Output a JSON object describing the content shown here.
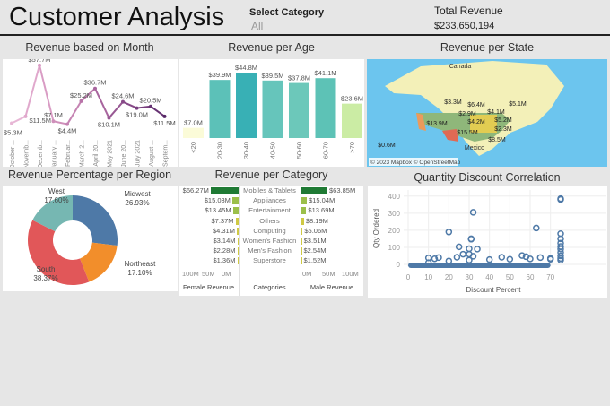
{
  "header": {
    "title": "Customer Analysis",
    "filter_label": "Select Category",
    "filter_value": "All",
    "total_label": "Total Revenue",
    "total_value": "$233,650,194"
  },
  "titles": {
    "month": "Revenue based on Month",
    "age": "Revenue per Age",
    "state": "Revenue per State",
    "region": "Revenue Percentage per Region",
    "category": "Revenue per Category",
    "scatter": "Quantity Discount Correlation"
  },
  "chart_data": [
    {
      "type": "line",
      "title": "Revenue based on Month",
      "categories": [
        "October ...",
        "Novemb...",
        "Decemb...",
        "January ...",
        "Februar...",
        "March 2...",
        "April 20...",
        "May 2021",
        "June 20...",
        "July 2021",
        "August ...",
        "Septem..."
      ],
      "values": [
        5.3,
        11.5,
        57.7,
        7.1,
        4.4,
        25.2,
        36.7,
        10.1,
        24.6,
        19.0,
        20.5,
        11.5
      ],
      "labels": [
        "$5.3M",
        "$11.5M",
        "$57.7M",
        "$7.1M",
        "$4.4M",
        "$25.2M",
        "$36.7M",
        "$10.1M",
        "$24.6M",
        "$19.0M",
        "$20.5M",
        "$11.5M"
      ],
      "colors": [
        "#e7b6d5",
        "#e0a8cc",
        "#d99cc4",
        "#cf8fba",
        "#c583b2",
        "#b873a8",
        "#a8659e",
        "#985893",
        "#874a88",
        "#773e7d",
        "#663272",
        "#552766"
      ]
    },
    {
      "type": "bar",
      "title": "Revenue per Age",
      "categories": [
        "<20",
        "20-30",
        "30-40",
        "40-50",
        "50-60",
        "60-70",
        ">70"
      ],
      "values": [
        7.0,
        39.9,
        44.8,
        39.5,
        37.8,
        41.1,
        23.6
      ],
      "labels": [
        "$7.0M",
        "$39.9M",
        "$44.8M",
        "$39.5M",
        "$37.8M",
        "$41.1M",
        "$23.6M"
      ],
      "colors": [
        "#fbfbd8",
        "#5cc1b8",
        "#38b0b5",
        "#66c5bb",
        "#6cc8ba",
        "#5dc2b6",
        "#cbeca4"
      ]
    },
    {
      "type": "pie",
      "title": "Revenue Percentage per Region",
      "slices": [
        {
          "name": "Midwest",
          "value": 26.93,
          "label": "26.93%",
          "color": "#4e79a7"
        },
        {
          "name": "Northeast",
          "value": 17.1,
          "label": "17.10%",
          "color": "#f28e2b"
        },
        {
          "name": "South",
          "value": 38.37,
          "label": "38.37%",
          "color": "#e15759"
        },
        {
          "name": "West",
          "value": 17.6,
          "label": "17.60%",
          "color": "#76b7b2"
        }
      ]
    },
    {
      "type": "bar",
      "title": "Revenue per Category",
      "categories": [
        "Mobiles & Tablets",
        "Appliances",
        "Entertainment",
        "Others",
        "Computing",
        "Women's Fashion",
        "Men's Fashion",
        "Superstore"
      ],
      "series": [
        {
          "name": "Female Revenue",
          "values": [
            66.27,
            15.03,
            13.45,
            7.37,
            4.31,
            3.14,
            2.28,
            1.36
          ],
          "labels": [
            "$66.27M",
            "$15.03M",
            "$13.45M",
            "$7.37M",
            "$4.31M",
            "$3.14M",
            "$2.28M",
            "$1.36M"
          ]
        },
        {
          "name": "Male Revenue",
          "values": [
            63.85,
            15.04,
            13.69,
            8.19,
            5.06,
            3.51,
            2.54,
            1.52
          ],
          "labels": [
            "$63.85M",
            "$15.04M",
            "$13.69M",
            "$8.19M",
            "$5.06M",
            "$3.51M",
            "$2.54M",
            "$1.52M"
          ]
        }
      ],
      "axis_ticks_female": [
        "100M",
        "50M",
        "0M"
      ],
      "axis_ticks_male": [
        "0M",
        "50M",
        "100M"
      ],
      "center_label": "Categories",
      "xlim": [
        0,
        100
      ]
    },
    {
      "type": "scatter",
      "title": "Quantity Discount Correlation",
      "xlabel": "Discount Percent",
      "ylabel": "Qty Ordered",
      "xticks": [
        0,
        10,
        20,
        30,
        40,
        50,
        60,
        70
      ],
      "yticks": [
        0,
        100,
        200,
        300,
        400
      ],
      "xlim": [
        0,
        75
      ],
      "ylim": [
        0,
        420
      ],
      "grid": true,
      "color": "#4e79a7",
      "points": [
        [
          32,
          305
        ],
        [
          75,
          385
        ],
        [
          75,
          380
        ],
        [
          20,
          190
        ],
        [
          31,
          150
        ],
        [
          31,
          148
        ],
        [
          63,
          213
        ],
        [
          75,
          180
        ],
        [
          75,
          150
        ],
        [
          75,
          125
        ],
        [
          75,
          105
        ],
        [
          75,
          90
        ],
        [
          75,
          70
        ],
        [
          75,
          50
        ],
        [
          75,
          35
        ],
        [
          75,
          25
        ],
        [
          25,
          103
        ],
        [
          30,
          92
        ],
        [
          34,
          90
        ],
        [
          27,
          60
        ],
        [
          30,
          60
        ],
        [
          32,
          48
        ],
        [
          24,
          42
        ],
        [
          10,
          38
        ],
        [
          15,
          40
        ],
        [
          13,
          33
        ],
        [
          46,
          42
        ],
        [
          56,
          52
        ],
        [
          58,
          45
        ],
        [
          65,
          40
        ],
        [
          70,
          35
        ],
        [
          10,
          10
        ],
        [
          20,
          20
        ],
        [
          30,
          25
        ],
        [
          40,
          28
        ],
        [
          50,
          30
        ],
        [
          60,
          32
        ],
        [
          70,
          30
        ]
      ],
      "band": {
        "x": [
          0,
          70
        ],
        "y": [
          0,
          30
        ]
      }
    },
    {
      "type": "map",
      "title": "Revenue per State",
      "place_labels": [
        "Canada",
        "Mexico"
      ],
      "value_labels": [
        "$3.3M",
        "$6.4M",
        "$2.9M",
        "$13.9M",
        "$4.2M",
        "$15.5M",
        "$5.2M",
        "$2.3M",
        "$4.1M",
        "$8.5M",
        "$0.6M",
        "$5.1M"
      ],
      "attribution": "© 2023 Mapbox © OpenStreetMap"
    }
  ]
}
